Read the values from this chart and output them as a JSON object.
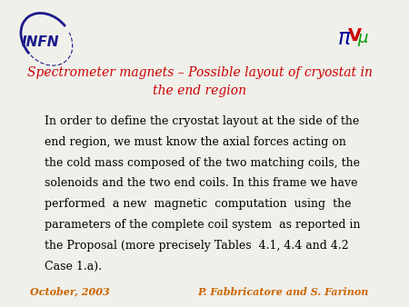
{
  "title_line1": "Spectrometer magnets – Possible layout of cryostat in",
  "title_line2": "the end region",
  "title_color": "#cc0000",
  "footer_left": "October, 2003",
  "footer_right": "P. Fabbricatore and S. Farinon",
  "footer_color": "#cc6600",
  "background_color": "#f0f0eb",
  "infn_text": "INFN",
  "infn_color": "#1a1a8c",
  "body_color": "#000000",
  "title_fontsize": 10,
  "body_fontsize": 9,
  "footer_fontsize": 8,
  "body_lines": [
    "In order to define the cryostat layout at the side of the",
    "end region, we must know the axial forces acting on",
    "the cold mass composed of the two matching coils, the",
    "solenoids and the two end coils. In this frame we have",
    "performed  a new  magnetic  computation  using  the",
    "parameters of the complete coil system  as reported in",
    "the Proposal (more precisely Tables  4.1, 4.4 and 4.2",
    "Case 1.a)."
  ]
}
